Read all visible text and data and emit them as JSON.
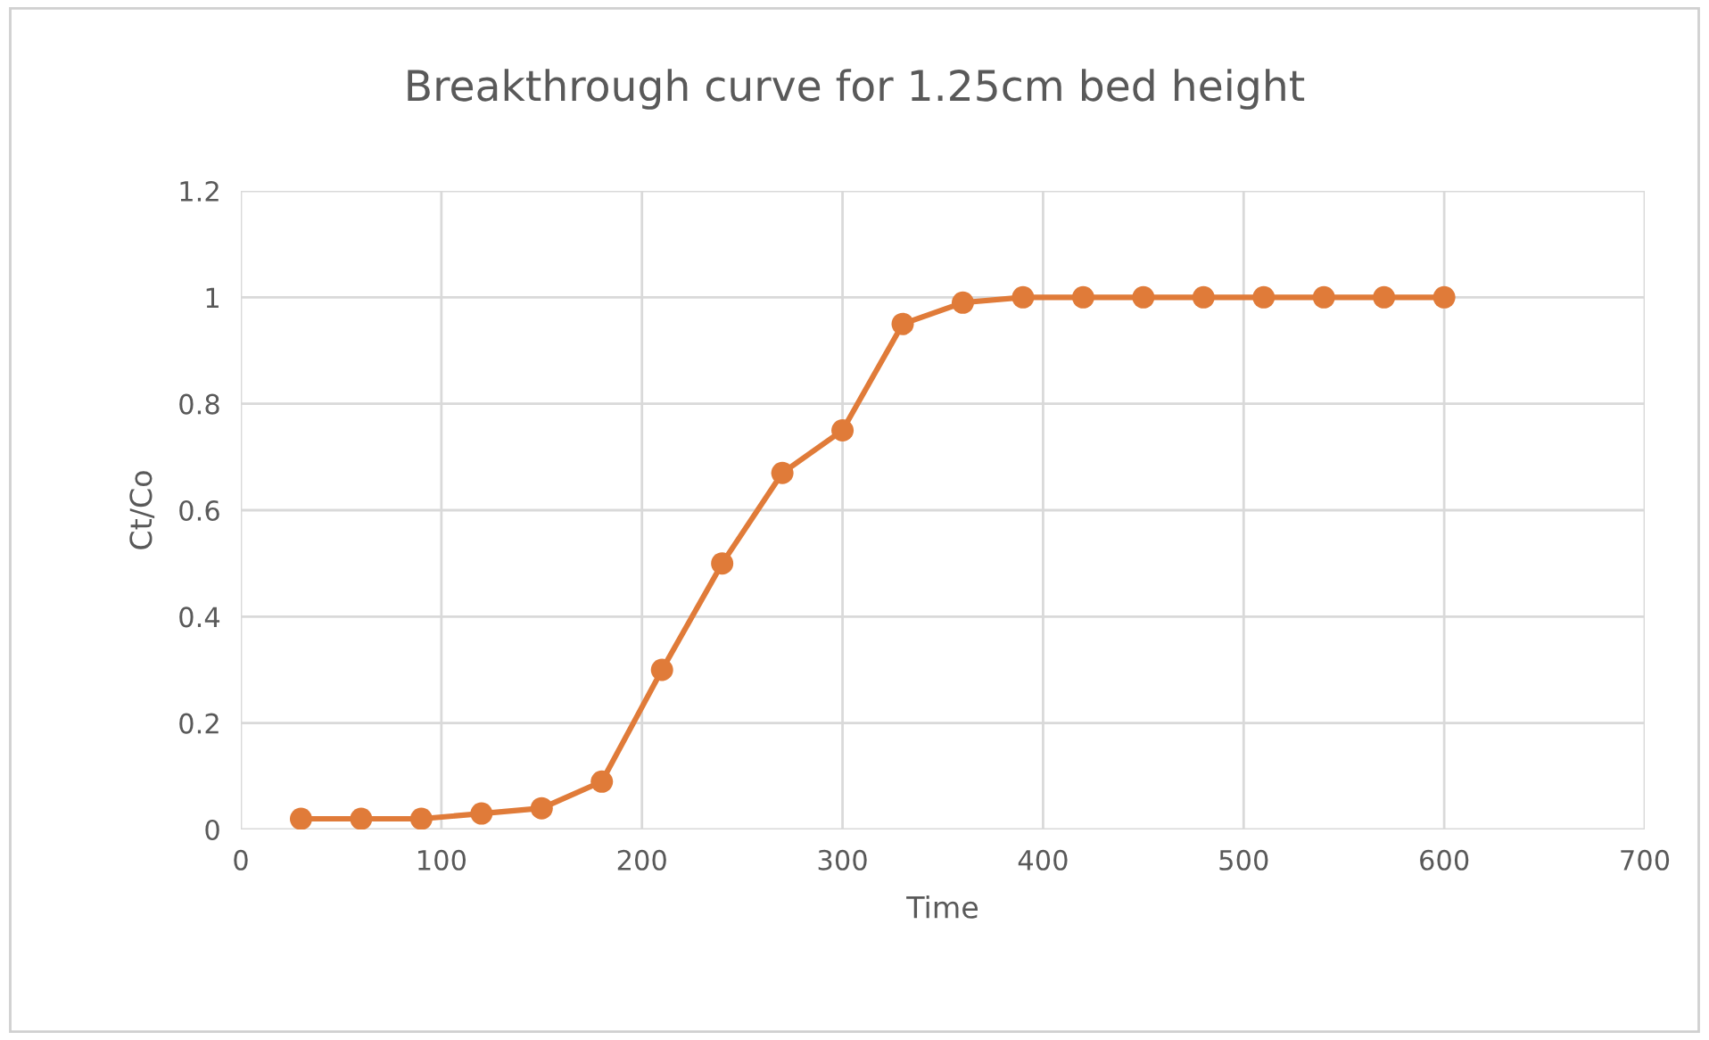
{
  "chart_data": {
    "type": "line",
    "title": "Breakthrough curve for 1.25cm bed height",
    "xlabel": "Time",
    "ylabel": "Ct/Co",
    "x": [
      30,
      60,
      90,
      120,
      150,
      180,
      210,
      240,
      270,
      300,
      330,
      360,
      390,
      420,
      450,
      480,
      510,
      540,
      570,
      600
    ],
    "series": [
      {
        "color": "#e07b39",
        "values": [
          0.02,
          0.02,
          0.02,
          0.03,
          0.04,
          0.09,
          0.3,
          0.5,
          0.67,
          0.75,
          0.95,
          0.99,
          1.0,
          1.0,
          1.0,
          1.0,
          1.0,
          1.0,
          1.0,
          1.0
        ]
      }
    ],
    "xlim": [
      0,
      700
    ],
    "xticks": [
      0,
      100,
      200,
      300,
      400,
      500,
      600,
      700
    ],
    "ylim": [
      0,
      1.2
    ],
    "yticks": [
      0,
      {
        "value": 0.2,
        "label": "0.2"
      },
      {
        "value": 0.4,
        "label": "0.4"
      },
      {
        "value": 0.6,
        "label": "0.6"
      },
      {
        "value": 0.8,
        "label": "0.8"
      },
      1,
      {
        "value": 1.2,
        "label": "1.2"
      }
    ],
    "grid": true,
    "marker": "circle",
    "line_style": "solid"
  }
}
